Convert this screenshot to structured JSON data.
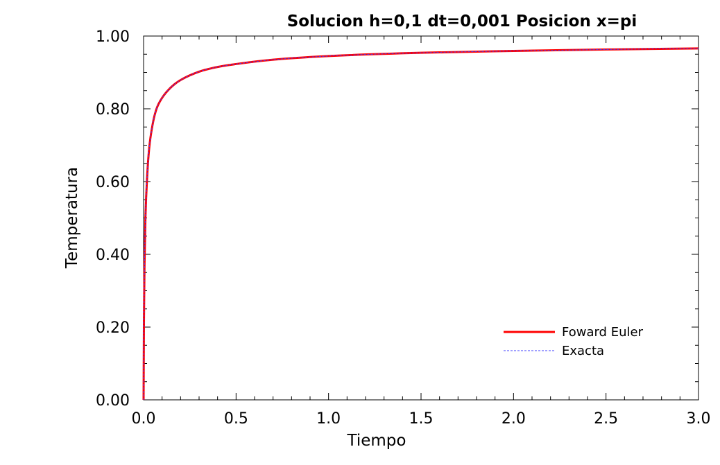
{
  "chart_data": {
    "type": "line",
    "title": "Solucion  h=0,1  dt=0,001 Posicion x=pi",
    "xlabel": "Tiempo",
    "ylabel": "Temperatura",
    "xlim": [
      0,
      3
    ],
    "ylim": [
      0,
      1
    ],
    "x_ticks": [
      "0.0",
      "0.5",
      "1.0",
      "1.5",
      "2.0",
      "2.5",
      "3.0"
    ],
    "y_ticks": [
      "0.00",
      "0.20",
      "0.40",
      "0.60",
      "0.80",
      "1.00"
    ],
    "grid": false,
    "legend_position": "bottom-right",
    "series": [
      {
        "name": "Foward Euler",
        "color": "#ff0000",
        "style": "solid",
        "x": [
          0,
          0.002,
          0.005,
          0.01,
          0.02,
          0.03,
          0.05,
          0.07,
          0.1,
          0.15,
          0.2,
          0.3,
          0.4,
          0.5,
          0.7,
          1.0,
          1.5,
          2.0,
          2.5,
          3.0
        ],
        "values": [
          0,
          0.22,
          0.37,
          0.5,
          0.62,
          0.69,
          0.76,
          0.8,
          0.83,
          0.86,
          0.879,
          0.902,
          0.915,
          0.923,
          0.935,
          0.945,
          0.954,
          0.959,
          0.963,
          0.966
        ]
      },
      {
        "name": "Exacta",
        "color": "#4040ff",
        "style": "dashed",
        "x": [
          0,
          0.002,
          0.005,
          0.01,
          0.02,
          0.03,
          0.05,
          0.07,
          0.1,
          0.15,
          0.2,
          0.3,
          0.4,
          0.5,
          0.7,
          1.0,
          1.5,
          2.0,
          2.5,
          3.0
        ],
        "values": [
          0,
          0.22,
          0.37,
          0.5,
          0.62,
          0.69,
          0.76,
          0.8,
          0.83,
          0.86,
          0.879,
          0.902,
          0.915,
          0.923,
          0.935,
          0.945,
          0.954,
          0.959,
          0.963,
          0.966
        ]
      }
    ]
  }
}
